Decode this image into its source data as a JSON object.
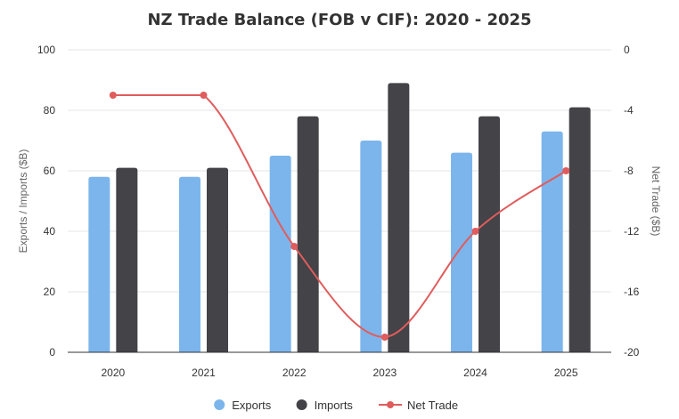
{
  "chart_data": {
    "type": "bar",
    "title": "NZ Trade Balance (FOB v CIF): 2020 - 2025",
    "categories": [
      "2020",
      "2021",
      "2022",
      "2023",
      "2024",
      "2025"
    ],
    "series": [
      {
        "name": "Exports",
        "type": "bar",
        "axis": "left",
        "values": [
          58,
          58,
          65,
          70,
          66,
          73
        ],
        "color": "#7cb5ec"
      },
      {
        "name": "Imports",
        "type": "bar",
        "axis": "left",
        "values": [
          61,
          61,
          78,
          89,
          78,
          81
        ],
        "color": "#434348"
      },
      {
        "name": "Net Trade",
        "type": "line",
        "axis": "right",
        "values": [
          -3,
          -3,
          -13,
          -19,
          -12,
          -8
        ],
        "color": "#e05c5c"
      }
    ],
    "ylabel": "Exports / Imports ($B)",
    "ylim": [
      0,
      100
    ],
    "yticks": [
      "0",
      "20",
      "40",
      "60",
      "80",
      "100"
    ],
    "y2label": "Net Trade ($B)",
    "y2lim": [
      -20,
      0
    ],
    "y2ticks": [
      "-20",
      "-16",
      "-12",
      "-8",
      "-4",
      "0"
    ],
    "grid": true,
    "legend": "bottom-center"
  }
}
